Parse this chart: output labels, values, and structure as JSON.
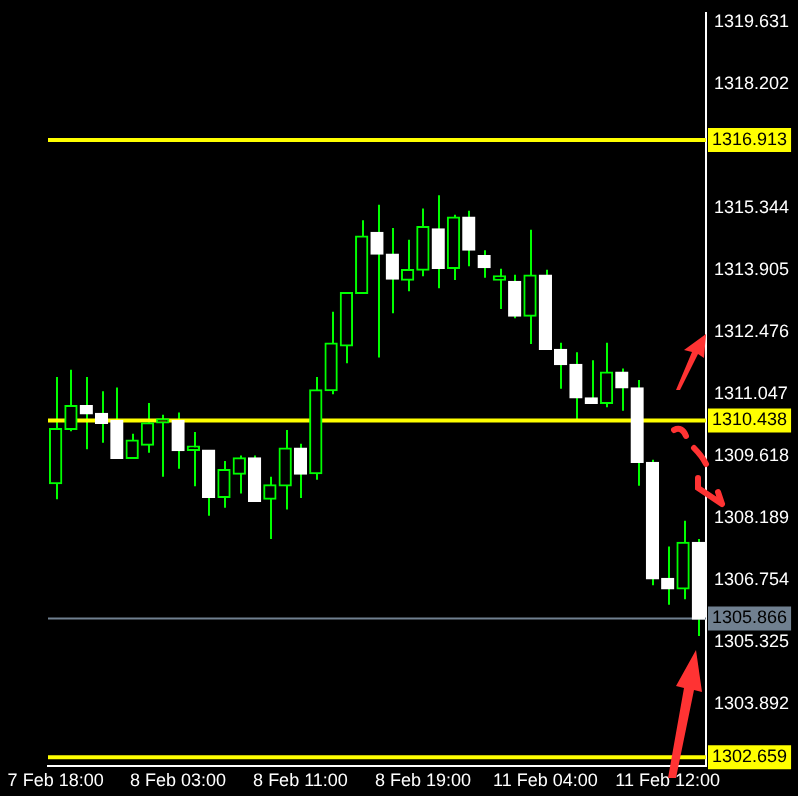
{
  "chart_data": {
    "type": "candlestick",
    "categories": [
      "7 Feb 18:00",
      null,
      null,
      null,
      null,
      null,
      null,
      null,
      "8 Feb 03:00",
      null,
      null,
      null,
      null,
      null,
      null,
      null,
      "8 Feb 11:00",
      null,
      null,
      null,
      null,
      null,
      null,
      null,
      "8 Feb 19:00",
      null,
      null,
      null,
      null,
      null,
      null,
      null,
      "11 Feb 04:00",
      null,
      null,
      null,
      null,
      null,
      null,
      null,
      "11 Feb 12:00",
      null,
      null
    ],
    "ohlc": [
      [
        1308.98,
        1311.44,
        1308.62,
        1310.25
      ],
      [
        1310.23,
        1311.61,
        1310.19,
        1310.78
      ],
      [
        1310.78,
        1311.44,
        1309.77,
        1310.59
      ],
      [
        1310.6,
        1311.11,
        1309.92,
        1310.37
      ],
      [
        1310.44,
        1311.2,
        1309.56,
        1309.56
      ],
      [
        1309.56,
        1310.13,
        1309.56,
        1309.98
      ],
      [
        1309.87,
        1310.84,
        1309.69,
        1310.38
      ],
      [
        1310.38,
        1310.57,
        1309.14,
        1310.38
      ],
      [
        1310.44,
        1310.62,
        1309.32,
        1309.74
      ],
      [
        1309.75,
        1310.17,
        1308.92,
        1309.75
      ],
      [
        1309.75,
        1309.75,
        1308.24,
        1308.66
      ],
      [
        1308.66,
        1309.5,
        1308.42,
        1309.3
      ],
      [
        1309.2,
        1309.63,
        1308.75,
        1309.57
      ],
      [
        1309.57,
        1309.63,
        1308.57,
        1308.57
      ],
      [
        1308.62,
        1309.14,
        1307.7,
        1308.95
      ],
      [
        1308.93,
        1310.22,
        1308.38,
        1309.8
      ],
      [
        1309.8,
        1309.9,
        1308.65,
        1309.2
      ],
      [
        1309.21,
        1311.44,
        1309.07,
        1311.14
      ],
      [
        1311.13,
        1312.95,
        1311.04,
        1312.22
      ],
      [
        1312.16,
        1313.39,
        1311.76,
        1313.39
      ],
      [
        1313.37,
        1315.06,
        1313.37,
        1314.69
      ],
      [
        1314.78,
        1315.42,
        1311.89,
        1314.28
      ],
      [
        1314.28,
        1314.88,
        1312.91,
        1313.7
      ],
      [
        1313.68,
        1314.61,
        1313.42,
        1313.92
      ],
      [
        1313.91,
        1315.33,
        1313.77,
        1314.91
      ],
      [
        1314.86,
        1315.64,
        1313.49,
        1313.95
      ],
      [
        1313.95,
        1315.19,
        1313.68,
        1315.13
      ],
      [
        1315.13,
        1315.28,
        1314,
        1314.37
      ],
      [
        1314.24,
        1314.37,
        1313.73,
        1313.97
      ],
      [
        1313.68,
        1313.94,
        1313.01,
        1313.68
      ],
      [
        1313.65,
        1313.8,
        1312.8,
        1312.85
      ],
      [
        1312.85,
        1314.84,
        1312.2,
        1313.79
      ],
      [
        1313.79,
        1313.92,
        1312.08,
        1312.08
      ],
      [
        1312.08,
        1312.23,
        1311.17,
        1311.73
      ],
      [
        1311.73,
        1312.01,
        1310.47,
        1310.96
      ],
      [
        1310.96,
        1311.83,
        1310.83,
        1310.83
      ],
      [
        1310.83,
        1312.23,
        1310.74,
        1311.55
      ],
      [
        1311.55,
        1311.64,
        1310.66,
        1311.19
      ],
      [
        1311.19,
        1311.37,
        1308.93,
        1309.47
      ],
      [
        1309.47,
        1309.53,
        1306.63,
        1306.78
      ],
      [
        1306.79,
        1307.53,
        1306.18,
        1306.55
      ],
      [
        1306.55,
        1308.12,
        1306.31,
        1307.62
      ],
      [
        1307.62,
        1307.7,
        1305.46,
        1305.85
      ]
    ],
    "color": "#00ff00",
    "colors": [
      "#00ff00",
      "#00ff00",
      "#ffffff",
      "#ffffff",
      "#ffffff",
      "#00ff00",
      "#00ff00",
      "#00ff00",
      "#ffffff",
      "#00ff00",
      "#ffffff",
      "#00ff00",
      "#00ff00",
      "#ffffff",
      "#00ff00",
      "#00ff00",
      "#ffffff",
      "#00ff00",
      "#00ff00",
      "#00ff00",
      "#00ff00",
      "#ffffff",
      "#ffffff",
      "#00ff00",
      "#00ff00",
      "#ffffff",
      "#00ff00",
      "#ffffff",
      "#ffffff",
      "#00ff00",
      "#ffffff",
      "#00ff00",
      "#ffffff",
      "#ffffff",
      "#ffffff",
      "#ffffff",
      "#00ff00",
      "#ffffff",
      "#ffffff",
      "#ffffff",
      "#ffffff",
      "#00ff00",
      "#ffffff"
    ],
    "ylim": [
      1302.45,
      1319.85
    ],
    "yticks": [
      1319.631,
      1318.202,
      1315.344,
      1313.905,
      1312.476,
      1311.047,
      1309.618,
      1308.189,
      1306.754,
      1305.325,
      1303.892
    ],
    "ref_lines": [
      {
        "axis": "y",
        "value": 1316.913,
        "label": "1316.913",
        "color": "#ffff00"
      },
      {
        "axis": "y",
        "value": 1310.438,
        "label": "1310.438",
        "color": "#ffff00"
      },
      {
        "axis": "y",
        "value": 1302.659,
        "label": "1302.659",
        "color": "#ffff00"
      },
      {
        "axis": "y",
        "value": 1305.866,
        "label": "1305.866",
        "color": "#708090"
      }
    ]
  }
}
